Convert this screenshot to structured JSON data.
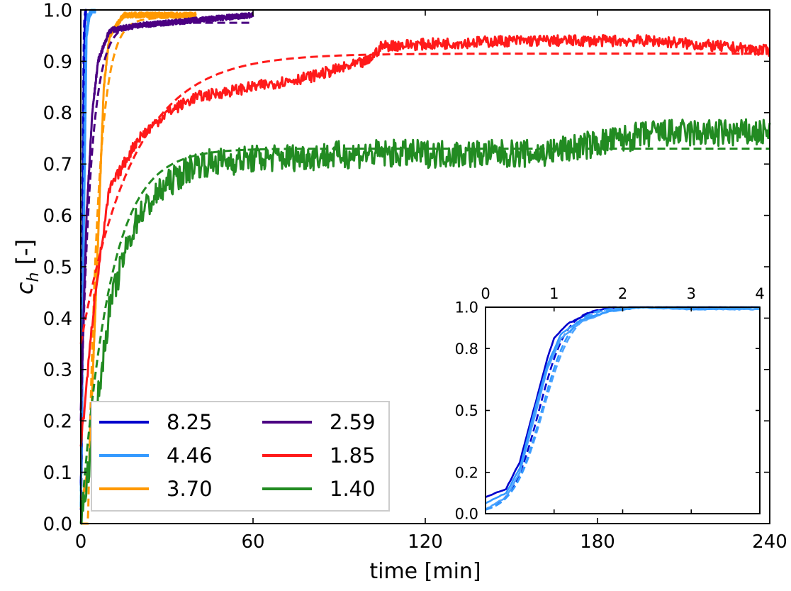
{
  "chart_data": [
    {
      "id": "main",
      "type": "line",
      "xlabel": "time [min]",
      "ylabel_base": "c",
      "ylabel_sub": "h",
      "ylabel_rest": " [-]",
      "xlim": [
        0,
        240
      ],
      "ylim": [
        0.0,
        1.0
      ],
      "xticks": [
        0,
        60,
        120,
        180,
        240
      ],
      "xtick_labels": [
        "0",
        "60",
        "120",
        "180",
        "240"
      ],
      "yticks": [
        0.0,
        0.1,
        0.2,
        0.3,
        0.4,
        0.5,
        0.6,
        0.7,
        0.8,
        0.9,
        1.0
      ],
      "ytick_labels": [
        "0.0",
        "0.1",
        "0.2",
        "0.3",
        "0.4",
        "0.5",
        "0.6",
        "0.7",
        "0.8",
        "0.9",
        "1.0"
      ],
      "legend": {
        "placement": "lower-left",
        "entries": [
          {
            "label": "8.25",
            "color": "#0000cc"
          },
          {
            "label": "4.46",
            "color": "#3399ff"
          },
          {
            "label": "3.70",
            "color": "#ff9900"
          },
          {
            "label": "2.59",
            "color": "#4b0082"
          },
          {
            "label": "1.85",
            "color": "#ff1a1a"
          },
          {
            "label": "1.40",
            "color": "#228b22"
          }
        ]
      },
      "series": [
        {
          "name": "8.25",
          "color": "#0000cc",
          "tmax": 1.8,
          "measured": [
            [
              0,
              0.08
            ],
            [
              0.3,
              0.12
            ],
            [
              0.6,
              0.35
            ],
            [
              1.0,
              0.85
            ],
            [
              1.4,
              0.97
            ],
            [
              1.8,
              1.0
            ]
          ],
          "fit": {
            "model": "logistic",
            "k": 6.0,
            "t0": 0.6
          }
        },
        {
          "name": "4.46",
          "color": "#3399ff",
          "tmax": 5,
          "measured": [
            [
              0,
              0.03
            ],
            [
              1,
              0.55
            ],
            [
              2,
              0.95
            ],
            [
              3,
              0.99
            ],
            [
              4,
              1.0
            ],
            [
              5,
              1.0
            ]
          ],
          "fit": {
            "model": "logistic",
            "k": 3.0,
            "t0": 0.9
          }
        },
        {
          "name": "3.70",
          "color": "#ff9900",
          "tmax": 40,
          "measured": [
            [
              0,
              0.03
            ],
            [
              3,
              0.12
            ],
            [
              6,
              0.55
            ],
            [
              8,
              0.85
            ],
            [
              10,
              0.95
            ],
            [
              15,
              0.99
            ],
            [
              25,
              0.99
            ],
            [
              40,
              0.99
            ]
          ],
          "fit": {
            "model": "first_order",
            "c0": 0.0,
            "cinf": 0.985,
            "tau": 3.5,
            "tshift": 2.5
          }
        },
        {
          "name": "2.59",
          "color": "#4b0082",
          "tmax": 60,
          "measured": [
            [
              0,
              0.22
            ],
            [
              2,
              0.6
            ],
            [
              4,
              0.8
            ],
            [
              6,
              0.9
            ],
            [
              10,
              0.96
            ],
            [
              20,
              0.97
            ],
            [
              40,
              0.98
            ],
            [
              60,
              0.99
            ]
          ],
          "fit": {
            "model": "first_order",
            "c0": 0.2,
            "cinf": 0.975,
            "tau": 3.5,
            "tshift": 0
          }
        },
        {
          "name": "1.85",
          "color": "#ff1a1a",
          "tmax": 240,
          "measured": [
            [
              0,
              0.15
            ],
            [
              5,
              0.45
            ],
            [
              10,
              0.65
            ],
            [
              20,
              0.75
            ],
            [
              30,
              0.8
            ],
            [
              40,
              0.83
            ],
            [
              60,
              0.85
            ],
            [
              80,
              0.87
            ],
            [
              100,
              0.9
            ],
            [
              105,
              0.93
            ],
            [
              150,
              0.94
            ],
            [
              200,
              0.94
            ],
            [
              240,
              0.92
            ]
          ],
          "fit": {
            "model": "first_order",
            "c0": 0.35,
            "cinf": 0.915,
            "tau": 18,
            "tshift": 0
          }
        },
        {
          "name": "1.40",
          "color": "#228b22",
          "tmax": 240,
          "measured": [
            [
              0,
              0.0
            ],
            [
              5,
              0.2
            ],
            [
              10,
              0.42
            ],
            [
              15,
              0.52
            ],
            [
              20,
              0.6
            ],
            [
              30,
              0.66
            ],
            [
              40,
              0.7
            ],
            [
              60,
              0.71
            ],
            [
              100,
              0.72
            ],
            [
              160,
              0.72
            ],
            [
              200,
              0.76
            ],
            [
              240,
              0.76
            ]
          ],
          "fit": {
            "model": "first_order",
            "c0": 0.0,
            "cinf": 0.73,
            "tau": 10,
            "tshift": 0
          }
        }
      ]
    },
    {
      "id": "inset",
      "type": "line",
      "xlim": [
        0,
        4
      ],
      "ylim": [
        0.0,
        1.0
      ],
      "xticks": [
        0,
        1,
        2,
        3,
        4
      ],
      "xtick_labels": [
        "0",
        "1",
        "2",
        "3",
        "4"
      ],
      "yticks": [
        0.0,
        0.2,
        0.5,
        0.8,
        1.0
      ],
      "ytick_labels": [
        "0.0",
        "0.2",
        "0.5",
        "0.8",
        "1.0"
      ],
      "series": [
        {
          "name": "8.25",
          "color": "#0000cc",
          "measured": [
            [
              0,
              0.08
            ],
            [
              0.3,
              0.12
            ],
            [
              0.5,
              0.25
            ],
            [
              0.7,
              0.5
            ],
            [
              0.9,
              0.75
            ],
            [
              1.0,
              0.85
            ],
            [
              1.2,
              0.92
            ],
            [
              1.5,
              0.97
            ],
            [
              1.8,
              1.0
            ],
            [
              2.5,
              1.0
            ],
            [
              4,
              1.0
            ]
          ],
          "fit": {
            "model": "logistic",
            "k": 5.0,
            "t0": 0.78
          }
        },
        {
          "name": "4.46 a",
          "color": "#4aa3ff",
          "measured": [
            [
              0,
              0.02
            ],
            [
              0.3,
              0.08
            ],
            [
              0.5,
              0.2
            ],
            [
              0.7,
              0.45
            ],
            [
              0.9,
              0.7
            ],
            [
              1.1,
              0.85
            ],
            [
              1.4,
              0.93
            ],
            [
              1.8,
              0.98
            ],
            [
              2.2,
              1.0
            ],
            [
              3.0,
              0.99
            ],
            [
              4,
              0.99
            ]
          ],
          "fit": {
            "model": "logistic",
            "k": 4.6,
            "t0": 0.84
          }
        },
        {
          "name": "4.46 b",
          "color": "#3399ff",
          "measured": [
            [
              0,
              0.05
            ],
            [
              0.3,
              0.1
            ],
            [
              0.5,
              0.22
            ],
            [
              0.7,
              0.48
            ],
            [
              0.9,
              0.72
            ],
            [
              1.1,
              0.87
            ],
            [
              1.4,
              0.94
            ],
            [
              1.8,
              0.98
            ],
            [
              2.3,
              1.0
            ],
            [
              3.2,
              0.99
            ],
            [
              4,
              1.0
            ]
          ],
          "fit": {
            "model": "logistic",
            "k": 4.8,
            "t0": 0.82
          }
        }
      ]
    }
  ]
}
